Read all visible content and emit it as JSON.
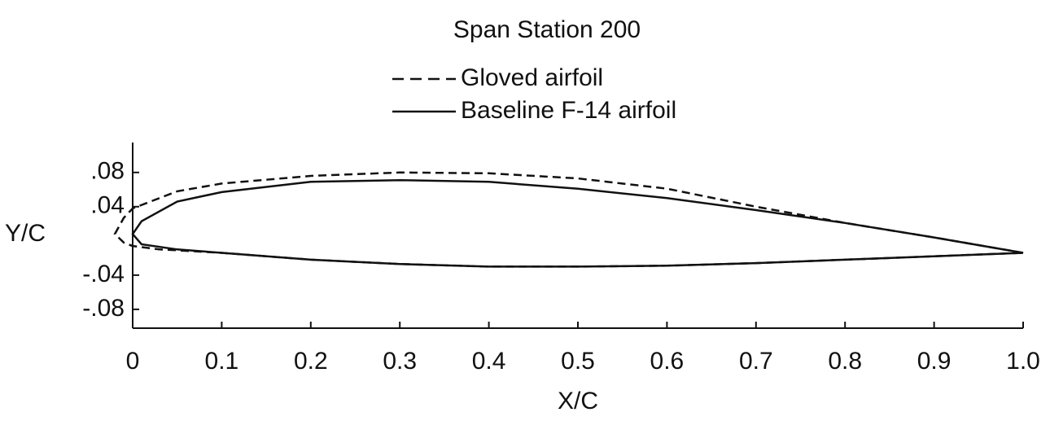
{
  "chart_data": {
    "type": "line",
    "title": "Span Station 200",
    "xlabel": "X/C",
    "ylabel": "Y/C",
    "xlim": [
      0,
      1
    ],
    "ylim": [
      -0.102,
      0.115
    ],
    "xticks": [
      0,
      0.1,
      0.2,
      0.3,
      0.4,
      0.5,
      0.6,
      0.7,
      0.8,
      0.9,
      {
        "value": 1,
        "label": "1.0"
      }
    ],
    "yticks": [
      {
        "value": 0.08,
        "label": ".08"
      },
      {
        "value": 0.04,
        "label": ".04"
      },
      {
        "value": -0.04,
        "label": "-.04"
      },
      {
        "value": -0.08,
        "label": "-.08"
      }
    ],
    "grid": false,
    "series": [
      {
        "name": "Gloved airfoil",
        "color": "#111111",
        "linestyle": "dashed",
        "x": [
          1,
          0.9,
          0.8,
          0.7,
          0.6,
          0.5,
          0.4,
          0.3,
          0.2,
          0.1,
          0.05,
          0,
          -0.01,
          -0.02,
          -0.01,
          0,
          0.03,
          0.05,
          0.1,
          0.2,
          0.3,
          0.4,
          0.5,
          0.6,
          0.7,
          0.8,
          0.9,
          1
        ],
        "values": [
          -0.014,
          0.004,
          0.021,
          0.04,
          0.061,
          0.073,
          0.079,
          0.08,
          0.076,
          0.067,
          0.058,
          0.038,
          0.027,
          0.008,
          -0.002,
          -0.006,
          -0.01,
          -0.011,
          -0.014,
          -0.022,
          -0.027,
          -0.03,
          -0.03,
          -0.029,
          -0.026,
          -0.022,
          -0.018,
          -0.014
        ]
      },
      {
        "name": "Baseline F-14 airfoil",
        "color": "#111111",
        "linestyle": "solid",
        "x": [
          1,
          0.9,
          0.8,
          0.7,
          0.6,
          0.5,
          0.4,
          0.3,
          0.2,
          0.1,
          0.05,
          0.01,
          0,
          0.01,
          0.05,
          0.1,
          0.2,
          0.3,
          0.4,
          0.5,
          0.6,
          0.7,
          0.8,
          0.9,
          1
        ],
        "values": [
          -0.014,
          0.004,
          0.021,
          0.036,
          0.05,
          0.061,
          0.069,
          0.071,
          0.069,
          0.057,
          0.046,
          0.023,
          0.008,
          -0.004,
          -0.01,
          -0.014,
          -0.022,
          -0.027,
          -0.03,
          -0.03,
          -0.029,
          -0.026,
          -0.022,
          -0.018,
          -0.014
        ]
      }
    ]
  }
}
